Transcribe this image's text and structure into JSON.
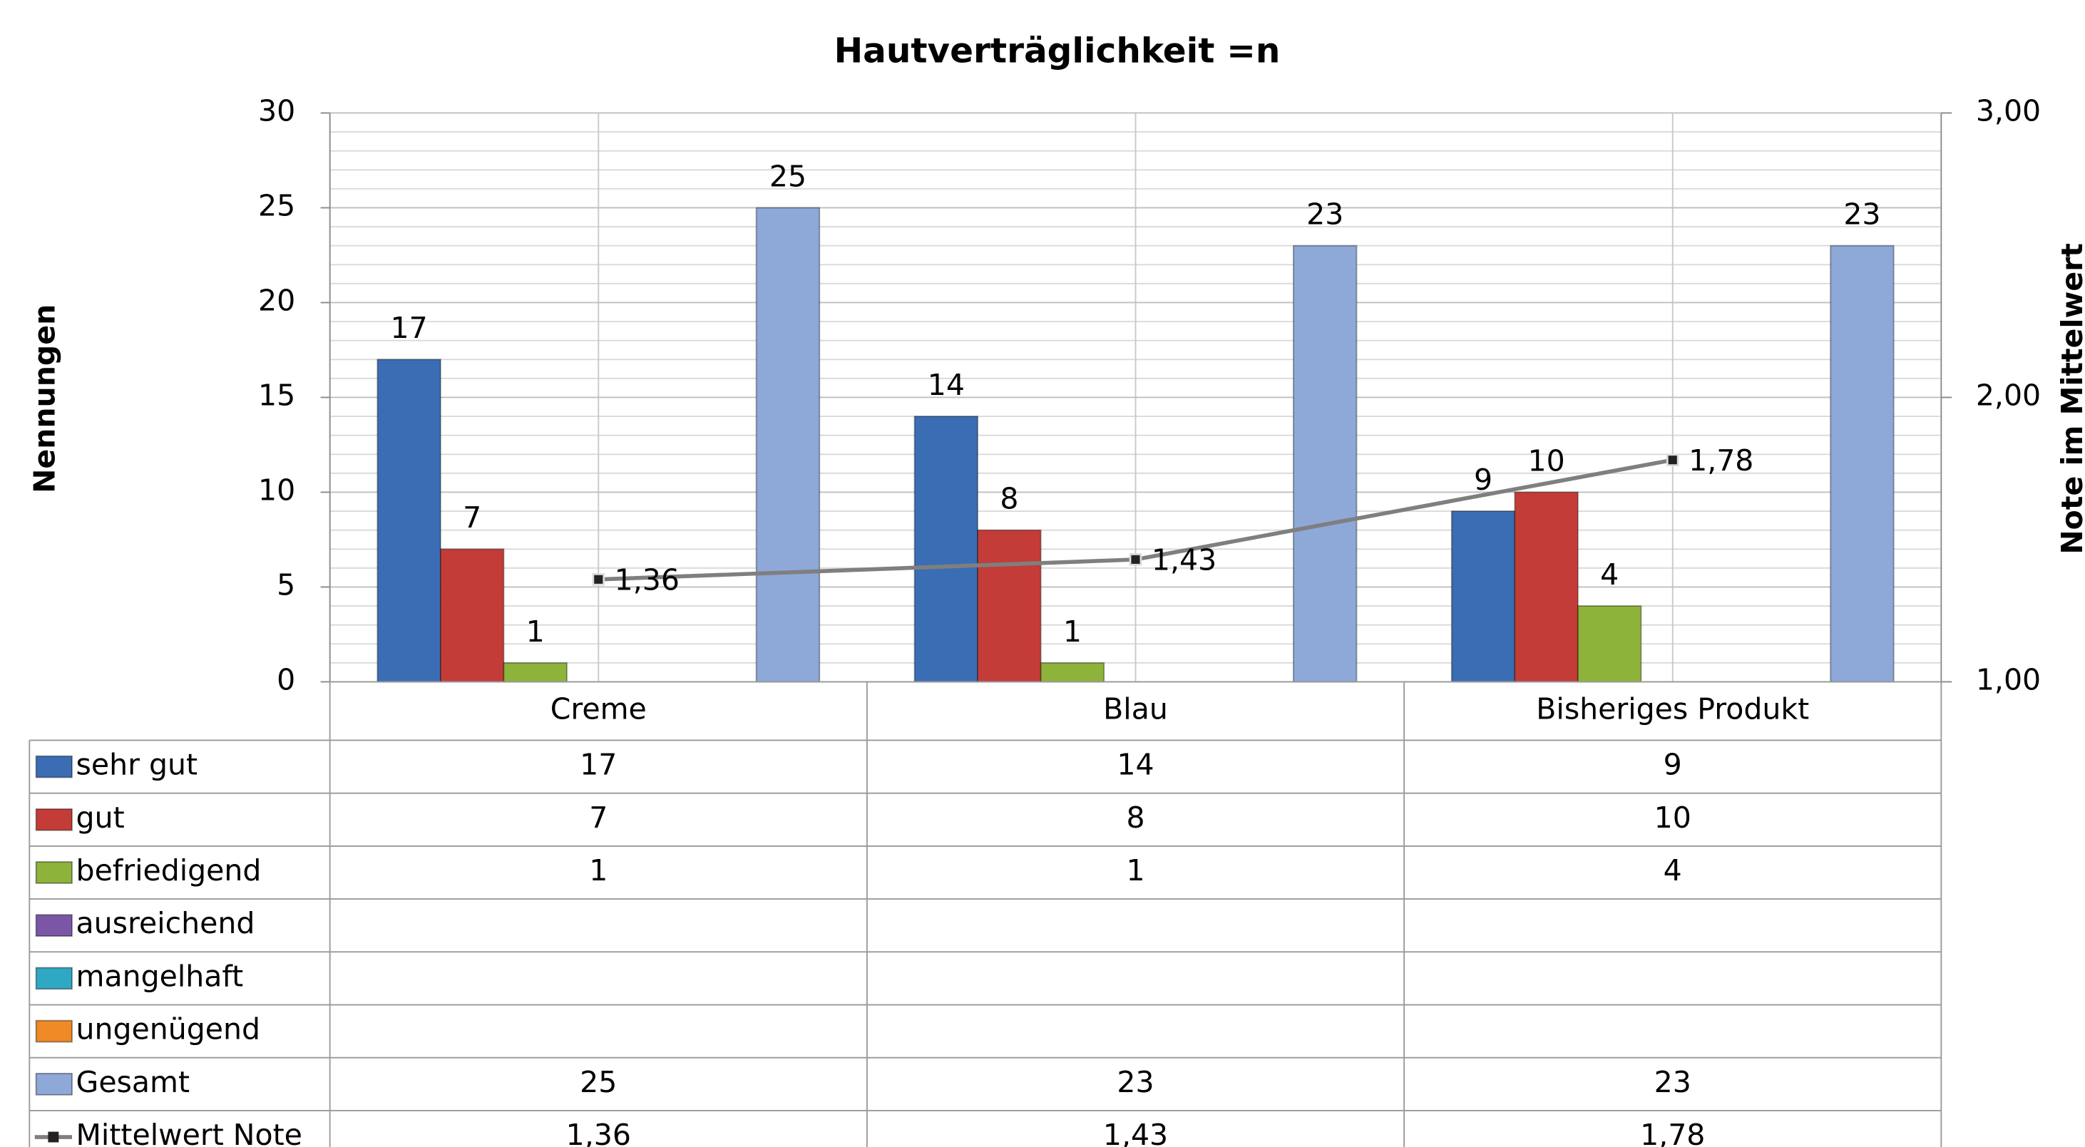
{
  "chart_data": {
    "type": "bar",
    "title": "Hautverträglichkeit =n",
    "ylabel": "Nennungen",
    "y2label": "Note im Mittelwert",
    "categories": [
      "Creme",
      "Blau",
      "Bisheriges Produkt"
    ],
    "series": [
      {
        "name": "sehr gut",
        "color": "#3a6db4",
        "values": [
          17,
          14,
          9
        ]
      },
      {
        "name": "gut",
        "color": "#c43c37",
        "values": [
          7,
          8,
          10
        ]
      },
      {
        "name": "befriedigend",
        "color": "#8db33a",
        "values": [
          1,
          1,
          4
        ]
      },
      {
        "name": "ausreichend",
        "color": "#7b56a6",
        "values": [
          null,
          null,
          null
        ]
      },
      {
        "name": "mangelhaft",
        "color": "#2fa8c3",
        "values": [
          null,
          null,
          null
        ]
      },
      {
        "name": "ungenügend",
        "color": "#ef8a27",
        "values": [
          null,
          null,
          null
        ]
      },
      {
        "name": "Gesamt",
        "color": "#8ea9d8",
        "values": [
          25,
          23,
          23
        ]
      },
      {
        "name": "Mittelwert Note",
        "color": "#7f7f7f",
        "type": "line",
        "axis": "y2",
        "values": [
          1.36,
          1.43,
          1.78
        ],
        "value_labels": [
          "1,36",
          "1,43",
          "1,78"
        ]
      }
    ],
    "ylim": [
      0,
      30
    ],
    "yticks": [
      0,
      5,
      10,
      15,
      20,
      25,
      30
    ],
    "y2lim": [
      1,
      3
    ],
    "y2ticks": [
      {
        "value": 1,
        "label": "1,00"
      },
      {
        "value": 2,
        "label": "2,00"
      },
      {
        "value": 3,
        "label": "3,00"
      }
    ],
    "grid": true,
    "data_table": true
  }
}
